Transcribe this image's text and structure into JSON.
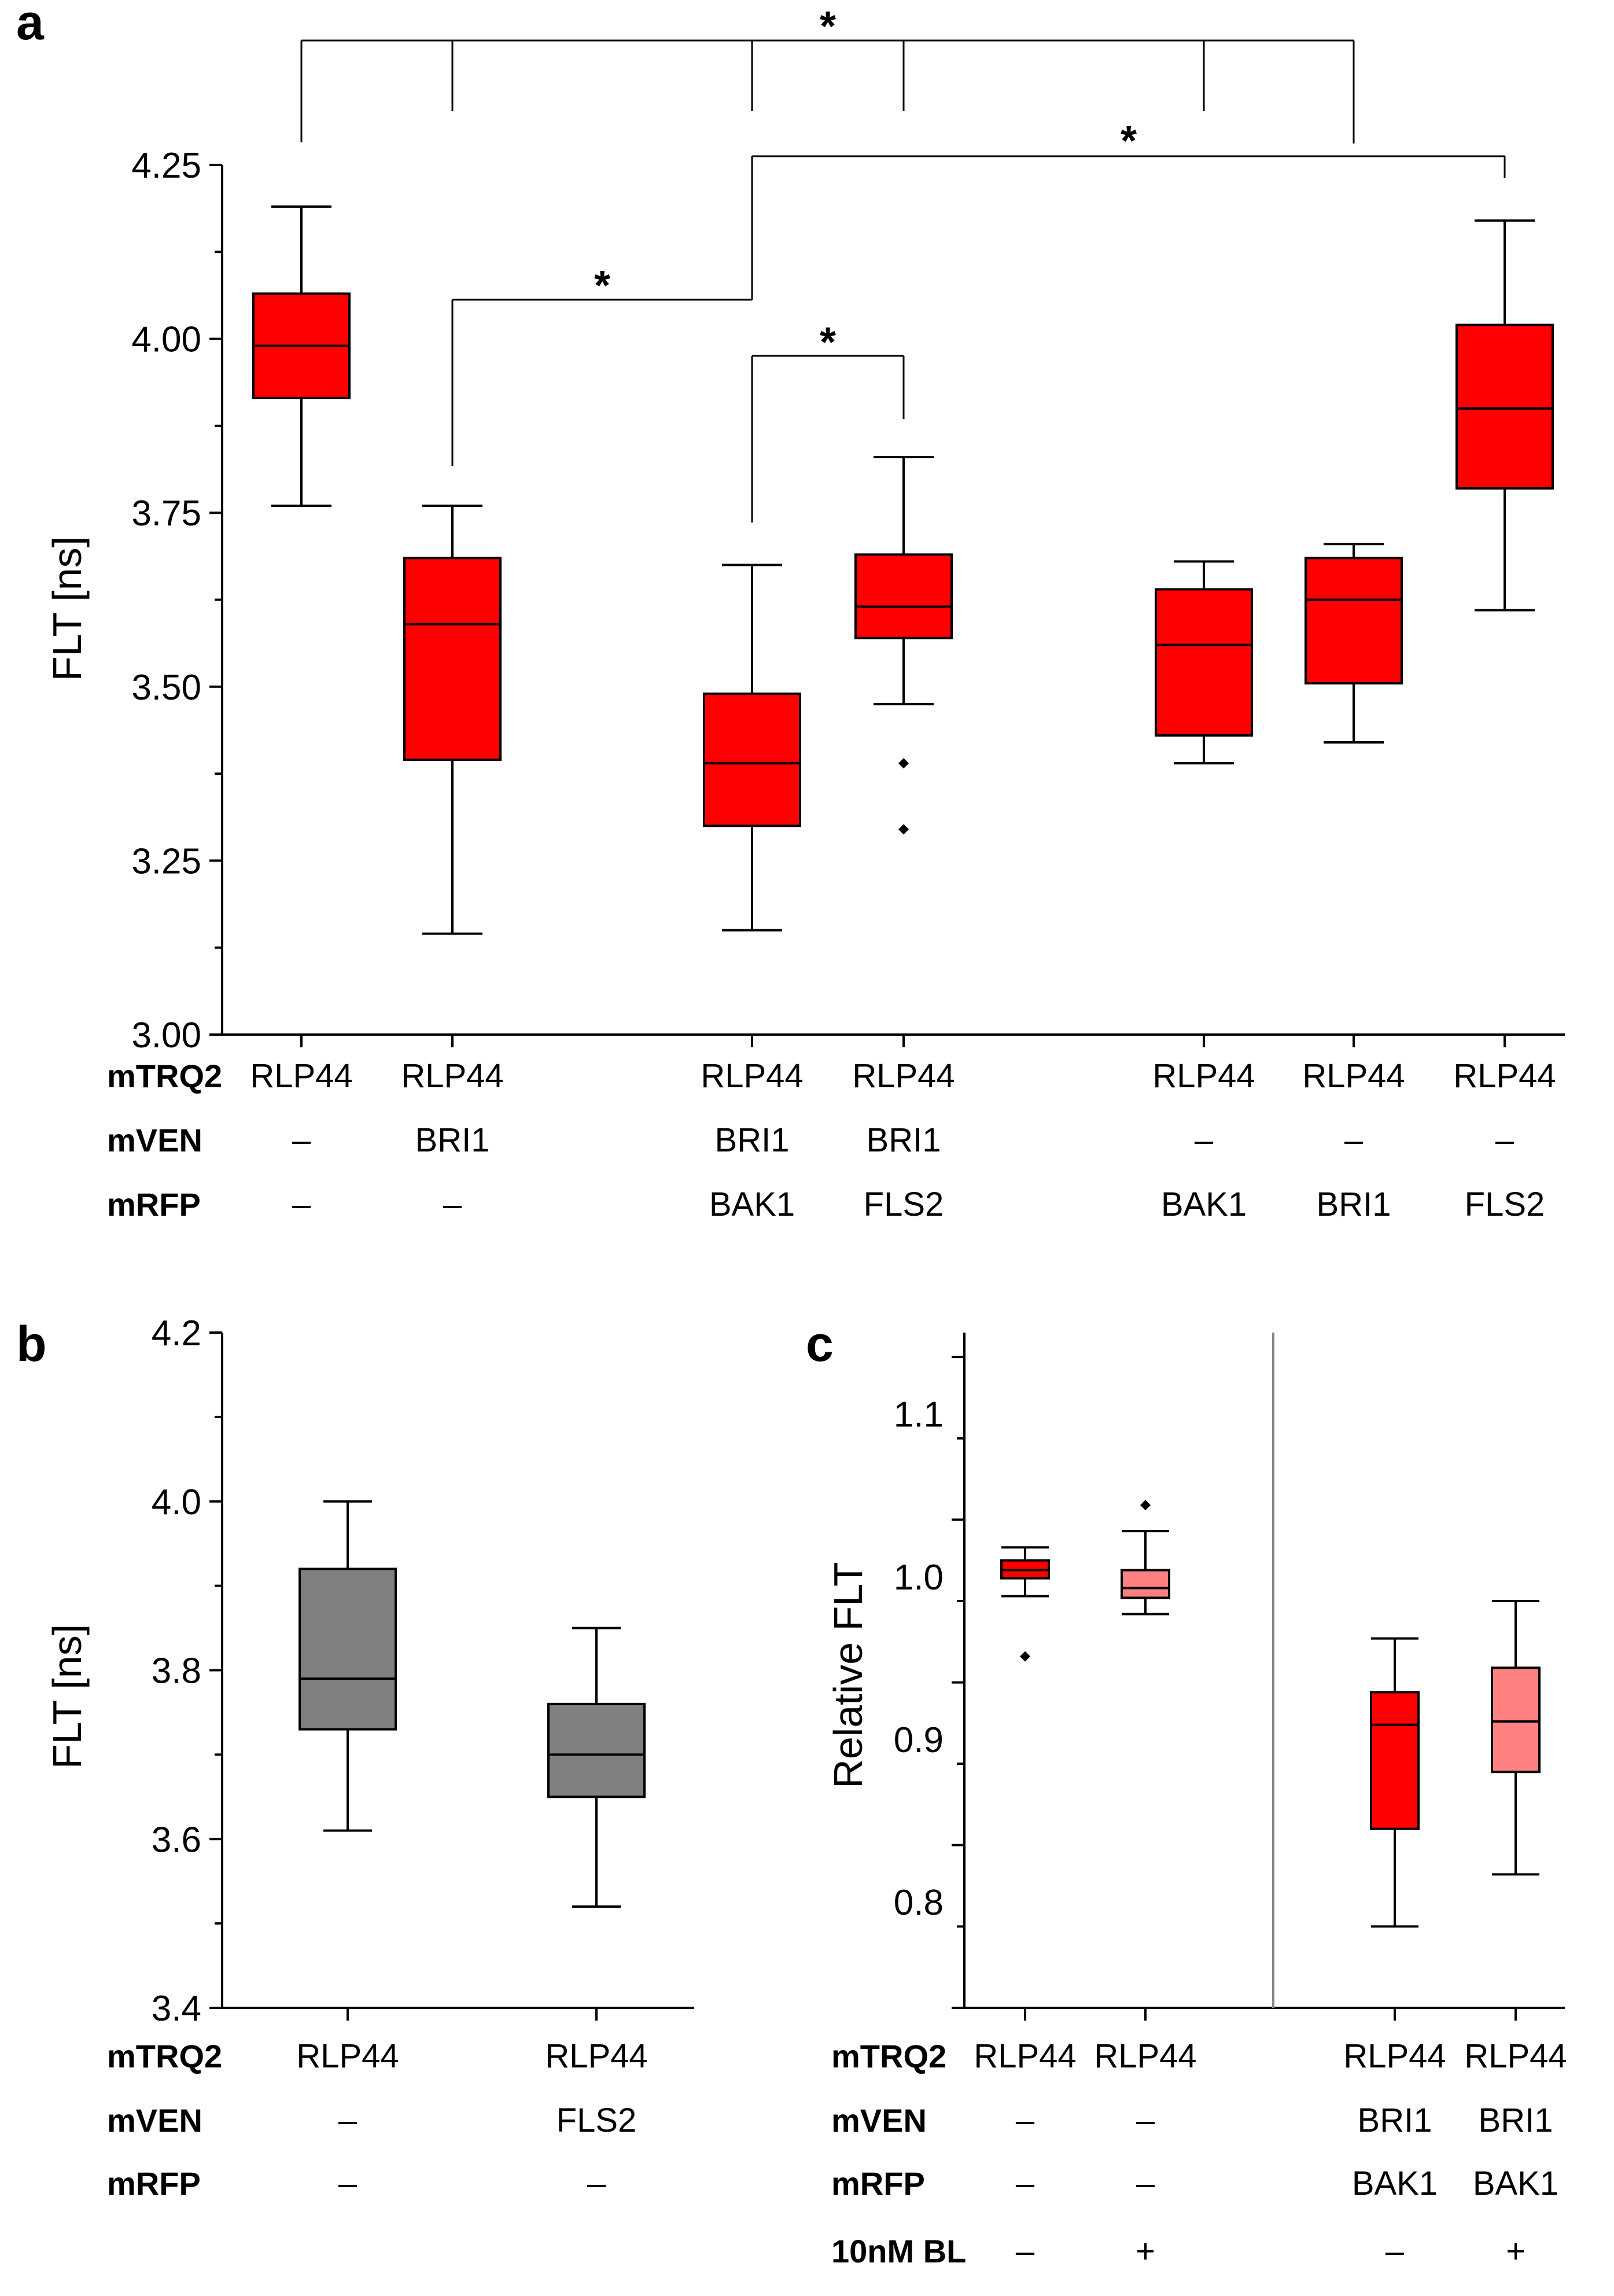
{
  "figure": {
    "panel_letters": [
      "a",
      "b",
      "c"
    ],
    "row_labels": [
      "mTRQ2",
      "mVEN",
      "mRFP",
      "10nM BL"
    ],
    "significance_marker": "*"
  },
  "chart_data": [
    {
      "panel": "a",
      "type": "box",
      "xlabel": "",
      "ylabel": "FLT [ns]",
      "ylim": [
        3.0,
        4.25
      ],
      "yticks": [
        "3.00",
        "3.25",
        "3.50",
        "3.75",
        "4.00",
        "4.25"
      ],
      "y_major_step": 0.25,
      "y_minor_step": 0.125,
      "color": "#ff0000",
      "conditions": [
        {
          "mTRQ2": "RLP44",
          "mVEN": "–",
          "mRFP": "–"
        },
        {
          "mTRQ2": "RLP44",
          "mVEN": "BRI1",
          "mRFP": "–"
        },
        {
          "mTRQ2": "RLP44",
          "mVEN": "BRI1",
          "mRFP": "BAK1"
        },
        {
          "mTRQ2": "RLP44",
          "mVEN": "BRI1",
          "mRFP": "FLS2"
        },
        {
          "mTRQ2": "RLP44",
          "mVEN": "–",
          "mRFP": "BAK1"
        },
        {
          "mTRQ2": "RLP44",
          "mVEN": "–",
          "mRFP": "BRI1"
        },
        {
          "mTRQ2": "RLP44",
          "mVEN": "–",
          "mRFP": "FLS2"
        }
      ],
      "boxes": [
        {
          "min": 3.76,
          "q1": 3.915,
          "median": 3.99,
          "q3": 4.065,
          "max": 4.19,
          "outliers": [],
          "color": "#ff0000"
        },
        {
          "min": 3.145,
          "q1": 3.395,
          "median": 3.59,
          "q3": 3.685,
          "max": 3.76,
          "outliers": [],
          "color": "#ff0000"
        },
        {
          "min": 3.15,
          "q1": 3.3,
          "median": 3.39,
          "q3": 3.49,
          "max": 3.675,
          "outliers": [],
          "color": "#ff0000"
        },
        {
          "min": 3.475,
          "q1": 3.57,
          "median": 3.615,
          "q3": 3.69,
          "max": 3.83,
          "outliers": [
            3.39,
            3.295
          ],
          "color": "#ff0000"
        },
        {
          "min": 3.39,
          "q1": 3.43,
          "median": 3.56,
          "q3": 3.64,
          "max": 3.68,
          "outliers": [],
          "color": "#ff0000"
        },
        {
          "min": 3.42,
          "q1": 3.505,
          "median": 3.625,
          "q3": 3.685,
          "max": 3.705,
          "outliers": [],
          "color": "#ff0000"
        },
        {
          "min": 3.61,
          "q1": 3.785,
          "median": 3.9,
          "q3": 4.02,
          "max": 4.17,
          "outliers": [],
          "color": "#ff0000"
        }
      ],
      "annotations": [
        {
          "text": "*",
          "comparison": "RLP44 alone vs all co-expressions except RLP44/BRI1/FLS2"
        },
        {
          "text": "*",
          "comparison": "RLP44/BRI1/BAK1 vs RLP44/–/FLS2"
        },
        {
          "text": "*",
          "comparison": "RLP44/BRI1 vs RLP44/BRI1/BAK1"
        },
        {
          "text": "*",
          "comparison": "RLP44/BRI1/BAK1 vs RLP44/BRI1/FLS2"
        }
      ]
    },
    {
      "panel": "b",
      "type": "box",
      "xlabel": "",
      "ylabel": "FLT [ns]",
      "ylim": [
        3.4,
        4.2
      ],
      "yticks": [
        "3.4",
        "3.6",
        "3.8",
        "4.0",
        "4.2"
      ],
      "y_major_step": 0.2,
      "y_minor_step": 0.1,
      "color": "#808080",
      "conditions": [
        {
          "mTRQ2": "RLP44",
          "mVEN": "–",
          "mRFP": "–"
        },
        {
          "mTRQ2": "RLP44",
          "mVEN": "FLS2",
          "mRFP": "–"
        }
      ],
      "boxes": [
        {
          "min": 3.61,
          "q1": 3.73,
          "median": 3.79,
          "q3": 3.92,
          "max": 4.0,
          "outliers": [],
          "color": "#808080"
        },
        {
          "min": 3.52,
          "q1": 3.65,
          "median": 3.7,
          "q3": 3.76,
          "max": 3.85,
          "outliers": [],
          "color": "#808080"
        }
      ]
    },
    {
      "panel": "c",
      "type": "box",
      "xlabel": "",
      "ylabel": "Relative FLT",
      "ylim": [
        0.735,
        1.15
      ],
      "yticks": [
        "0.8",
        "0.9",
        "1.0",
        "1.1"
      ],
      "y_major_step": 0.1,
      "y_minor_step": 0.05,
      "conditions": [
        {
          "mTRQ2": "RLP44",
          "mVEN": "–",
          "mRFP": "–",
          "BL": "–"
        },
        {
          "mTRQ2": "RLP44",
          "mVEN": "–",
          "mRFP": "–",
          "BL": "+"
        },
        {
          "mTRQ2": "RLP44",
          "mVEN": "BRI1",
          "mRFP": "BAK1",
          "BL": "–"
        },
        {
          "mTRQ2": "RLP44",
          "mVEN": "BRI1",
          "mRFP": "BAK1",
          "BL": "+"
        }
      ],
      "boxes": [
        {
          "min": 0.988,
          "q1": 0.999,
          "median": 1.004,
          "q3": 1.01,
          "max": 1.018,
          "outliers": [
            0.951
          ],
          "color": "#ff0000"
        },
        {
          "min": 0.977,
          "q1": 0.987,
          "median": 0.993,
          "q3": 1.004,
          "max": 1.028,
          "outliers": [
            1.044
          ],
          "color": "#ff8080"
        },
        {
          "min": 0.785,
          "q1": 0.845,
          "median": 0.909,
          "q3": 0.929,
          "max": 0.962,
          "outliers": [],
          "color": "#ff0000"
        },
        {
          "min": 0.817,
          "q1": 0.88,
          "median": 0.911,
          "q3": 0.944,
          "max": 0.985,
          "outliers": [],
          "color": "#ff8080"
        }
      ]
    }
  ]
}
